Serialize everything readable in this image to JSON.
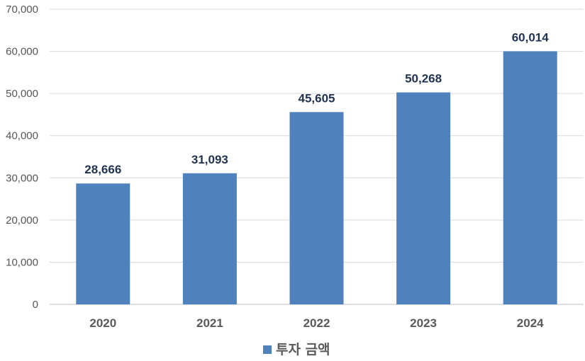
{
  "chart_data": {
    "type": "bar",
    "categories": [
      "2020",
      "2021",
      "2022",
      "2023",
      "2024"
    ],
    "series": [
      {
        "name": "투자 금액",
        "values": [
          28666,
          31093,
          45605,
          50268,
          60014
        ]
      }
    ],
    "data_labels": [
      "28,666",
      "31,093",
      "45,605",
      "50,268",
      "60,014"
    ],
    "yticks": [
      0,
      10000,
      20000,
      30000,
      40000,
      50000,
      60000,
      70000
    ],
    "ytick_labels": [
      "0",
      "10,000",
      "20,000",
      "30,000",
      "40,000",
      "50,000",
      "60,000",
      "70,000"
    ],
    "ylim": [
      0,
      70000
    ],
    "grid": true,
    "legend_position": "bottom",
    "colors": {
      "bar": "#4f81bd",
      "grid": "#d9d9d9",
      "axis": "#bfbfbf"
    }
  }
}
